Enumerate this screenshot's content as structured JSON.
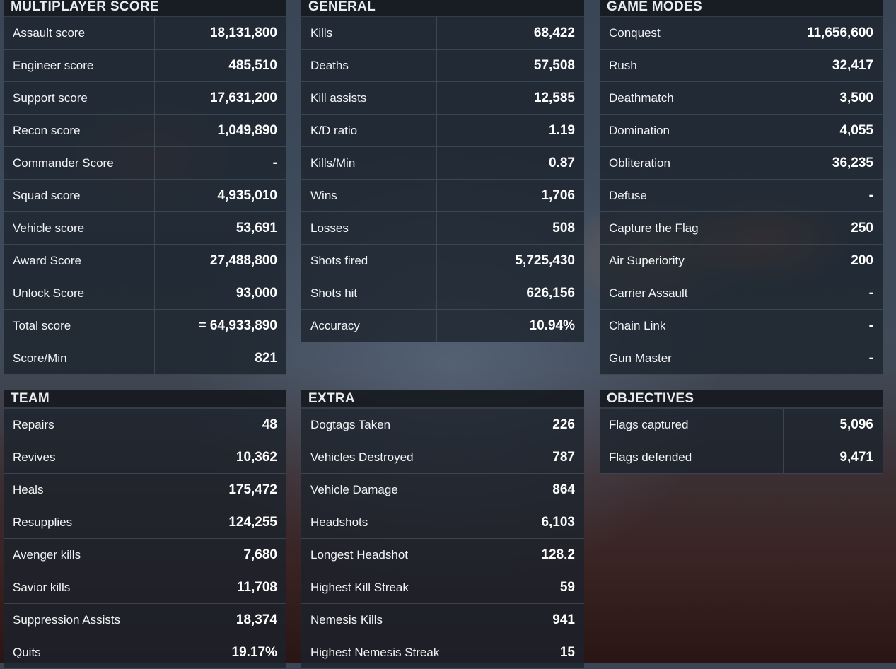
{
  "panels": {
    "multiplayer": {
      "title": "MULTIPLAYER SCORE",
      "rows": [
        {
          "label": "Assault score",
          "value": "18,131,800"
        },
        {
          "label": "Engineer score",
          "value": "485,510"
        },
        {
          "label": "Support score",
          "value": "17,631,200"
        },
        {
          "label": "Recon score",
          "value": "1,049,890"
        },
        {
          "label": "Commander Score",
          "value": "-"
        },
        {
          "label": "Squad score",
          "value": "4,935,010"
        },
        {
          "label": "Vehicle score",
          "value": "53,691"
        },
        {
          "label": "Award Score",
          "value": "27,488,800"
        },
        {
          "label": "Unlock Score",
          "value": "93,000"
        },
        {
          "label": "Total score",
          "value": "= 64,933,890"
        },
        {
          "label": "Score/Min",
          "value": "821"
        }
      ]
    },
    "general": {
      "title": "GENERAL",
      "rows": [
        {
          "label": "Kills",
          "value": "68,422"
        },
        {
          "label": "Deaths",
          "value": "57,508"
        },
        {
          "label": "Kill assists",
          "value": "12,585"
        },
        {
          "label": "K/D ratio",
          "value": "1.19"
        },
        {
          "label": "Kills/Min",
          "value": "0.87"
        },
        {
          "label": "Wins",
          "value": "1,706"
        },
        {
          "label": "Losses",
          "value": "508"
        },
        {
          "label": "Shots fired",
          "value": "5,725,430"
        },
        {
          "label": "Shots hit",
          "value": "626,156"
        },
        {
          "label": "Accuracy",
          "value": "10.94%"
        }
      ]
    },
    "game_modes": {
      "title": "GAME MODES",
      "rows": [
        {
          "label": "Conquest",
          "value": "11,656,600"
        },
        {
          "label": "Rush",
          "value": "32,417"
        },
        {
          "label": "Deathmatch",
          "value": "3,500"
        },
        {
          "label": "Domination",
          "value": "4,055"
        },
        {
          "label": "Obliteration",
          "value": "36,235"
        },
        {
          "label": "Defuse",
          "value": "-"
        },
        {
          "label": "Capture the Flag",
          "value": "250"
        },
        {
          "label": "Air Superiority",
          "value": "200"
        },
        {
          "label": "Carrier Assault",
          "value": "-"
        },
        {
          "label": "Chain Link",
          "value": "-"
        },
        {
          "label": "Gun Master",
          "value": "-"
        }
      ]
    },
    "team": {
      "title": "TEAM",
      "rows": [
        {
          "label": "Repairs",
          "value": "48"
        },
        {
          "label": "Revives",
          "value": "10,362"
        },
        {
          "label": "Heals",
          "value": "175,472"
        },
        {
          "label": "Resupplies",
          "value": "124,255"
        },
        {
          "label": "Avenger kills",
          "value": "7,680"
        },
        {
          "label": "Savior kills",
          "value": "11,708"
        },
        {
          "label": "Suppression Assists",
          "value": "18,374"
        },
        {
          "label": "Quits",
          "value": "19.17%"
        }
      ]
    },
    "extra": {
      "title": "EXTRA",
      "rows": [
        {
          "label": "Dogtags Taken",
          "value": "226"
        },
        {
          "label": "Vehicles Destroyed",
          "value": "787"
        },
        {
          "label": "Vehicle Damage",
          "value": "864"
        },
        {
          "label": "Headshots",
          "value": "6,103"
        },
        {
          "label": "Longest Headshot",
          "value": "128.2"
        },
        {
          "label": "Highest Kill Streak",
          "value": "59"
        },
        {
          "label": "Nemesis Kills",
          "value": "941"
        },
        {
          "label": "Highest Nemesis Streak",
          "value": "15"
        }
      ]
    },
    "objectives": {
      "title": "OBJECTIVES",
      "rows": [
        {
          "label": "Flags captured",
          "value": "5,096"
        },
        {
          "label": "Flags defended",
          "value": "9,471"
        }
      ]
    }
  }
}
